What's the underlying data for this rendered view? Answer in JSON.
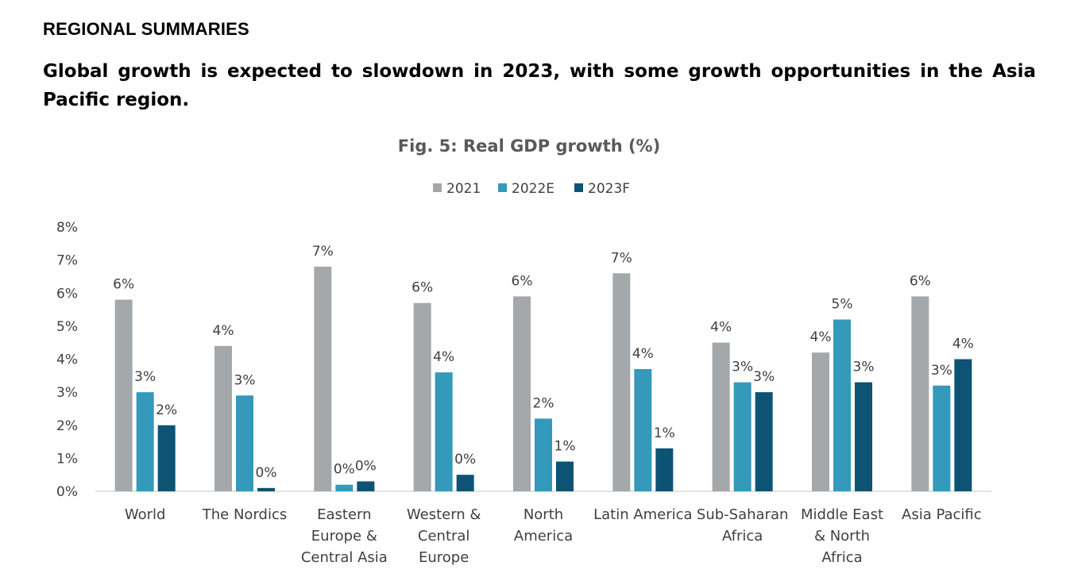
{
  "header": {
    "section_title": "REGIONAL SUMMARIES",
    "headline": "Global growth is expected to slowdown in 2023, with some growth opportunities in the Asia Pacific region."
  },
  "chart_data": {
    "type": "bar",
    "title": "Fig. 5: Real GDP growth (%)",
    "xlabel": "",
    "ylabel": "",
    "ylim": [
      0,
      8
    ],
    "y_ticks": [
      "0%",
      "1%",
      "2%",
      "3%",
      "4%",
      "5%",
      "6%",
      "7%",
      "8%"
    ],
    "grid": false,
    "legend_position": "top-center",
    "categories": [
      [
        "World"
      ],
      [
        "The Nordics"
      ],
      [
        "Eastern",
        "Europe &",
        "Central Asia"
      ],
      [
        "Western &",
        "Central",
        "Europe"
      ],
      [
        "North",
        "America"
      ],
      [
        "Latin America"
      ],
      [
        "Sub-Saharan",
        "Africa"
      ],
      [
        "Middle East",
        "& North",
        "Africa"
      ],
      [
        "Asia Pacific"
      ]
    ],
    "series": [
      {
        "name": "2021",
        "color": "#A5A8AB",
        "values": [
          5.8,
          4.4,
          6.8,
          5.7,
          5.9,
          6.6,
          4.5,
          4.2,
          5.9
        ],
        "labels": [
          "6%",
          "4%",
          "7%",
          "6%",
          "6%",
          "7%",
          "4%",
          "4%",
          "6%"
        ]
      },
      {
        "name": "2022E",
        "color": "#3499BA",
        "values": [
          3.0,
          2.9,
          0.2,
          3.6,
          2.2,
          3.7,
          3.3,
          5.2,
          3.2
        ],
        "labels": [
          "3%",
          "3%",
          "0%",
          "4%",
          "2%",
          "4%",
          "3%",
          "5%",
          "3%"
        ]
      },
      {
        "name": "2023F",
        "color": "#0C5374",
        "values": [
          2.0,
          0.1,
          0.3,
          0.5,
          0.9,
          1.3,
          3.0,
          3.3,
          4.0
        ],
        "labels": [
          "2%",
          "0%",
          "0%",
          "0%",
          "1%",
          "1%",
          "3%",
          "3%",
          "4%"
        ]
      }
    ]
  }
}
